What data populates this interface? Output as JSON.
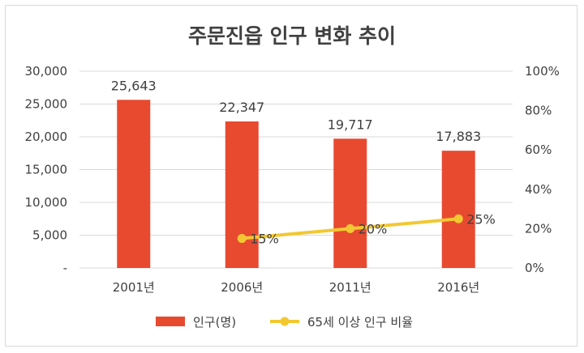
{
  "chart_data": {
    "type": "bar",
    "title": "주문진읍 인구 변화 추이",
    "categories": [
      "2001년",
      "2006년",
      "2011년",
      "2016년"
    ],
    "series": [
      {
        "name": "인구(명)",
        "type": "bar",
        "axis": "left",
        "color": "#e84a30",
        "values": [
          25643,
          22347,
          19717,
          17883
        ],
        "labels": [
          "25,643",
          "22,347",
          "19,717",
          "17,883"
        ]
      },
      {
        "name": "65세 이상 인구 비율",
        "type": "line",
        "axis": "right",
        "color": "#f2c832",
        "values": [
          null,
          15,
          20,
          25
        ],
        "labels": [
          "",
          "15%",
          "20%",
          "25%"
        ]
      }
    ],
    "y_left": {
      "min": 0,
      "max": 30000,
      "ticks": [
        "-",
        "5,000",
        "10,000",
        "15,000",
        "20,000",
        "25,000",
        "30,000"
      ]
    },
    "y_right": {
      "min": 0,
      "max": 100,
      "ticks": [
        "0%",
        "20%",
        "40%",
        "60%",
        "80%",
        "100%"
      ]
    },
    "grid": true,
    "legend_position": "bottom"
  }
}
